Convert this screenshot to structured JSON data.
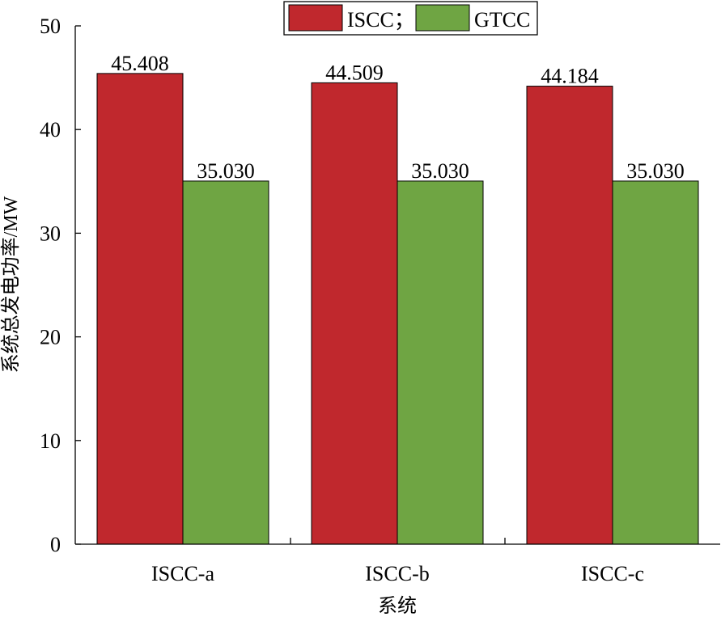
{
  "chart_data": {
    "type": "bar",
    "categories": [
      "ISCC-a",
      "ISCC-b",
      "ISCC-c"
    ],
    "series": [
      {
        "name": "ISCC；",
        "values": [
          45.408,
          44.509,
          44.184
        ],
        "labels": [
          "45.408",
          "44.509",
          "44.184"
        ],
        "color": "#c0282d"
      },
      {
        "name": "GTCC",
        "values": [
          35.03,
          35.03,
          35.03
        ],
        "labels": [
          "35.030",
          "35.030",
          "35.030"
        ],
        "color": "#6fa543"
      }
    ],
    "xlabel": "系统",
    "ylabel": "系统总发电功率/MW",
    "ylim": [
      0,
      50
    ],
    "yticks": [
      0,
      10,
      20,
      30,
      40,
      50
    ],
    "grid": false,
    "legend_position": "top-center"
  }
}
